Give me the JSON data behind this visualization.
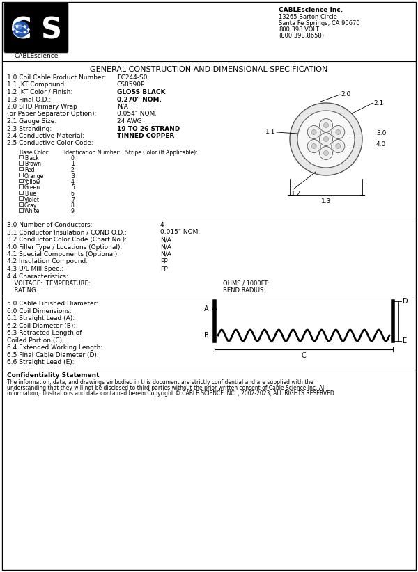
{
  "title": "GENERAL CONSTRUCTION AND DIMENSIONAL SPECIFICATION",
  "company_name": "CABLEscience Inc.",
  "company_address_lines": [
    "13265 Barton Circle",
    "Santa Fe Springs, CA 90670",
    "800.398.VOLT",
    "(800.398.8658)"
  ],
  "specs": [
    [
      "1.0 Coil Cable Product Number:",
      "EC244-S0"
    ],
    [
      "1.1 JKT Compound:",
      "CS8590P"
    ],
    [
      "1.2 JKT Color / Finish:",
      "GLOSS BLACK"
    ],
    [
      "1.3 Final O.D.:",
      "0.270\" NOM."
    ],
    [
      "2.0 SHD Primary Wrap",
      "N/A"
    ],
    [
      "(or Paper Separator Option):",
      "0.054\" NOM."
    ],
    [
      "2.1 Gauge Size:",
      "24 AWG"
    ],
    [
      "2.3 Stranding:",
      "19 TO 26 STRAND"
    ],
    [
      "2.4 Conductive Material:",
      "TINNED COPPER"
    ],
    [
      "2.5 Conductive Color Code:",
      ""
    ]
  ],
  "color_table_headers": [
    "Base Color:",
    "Idenfication Number:",
    "Stripe Color (If Applicable):"
  ],
  "color_rows": [
    [
      "Black",
      "0"
    ],
    [
      "Brown",
      "1"
    ],
    [
      "Red",
      "2"
    ],
    [
      "Orange",
      "3"
    ],
    [
      "Yellow",
      "4"
    ],
    [
      "Green",
      "5"
    ],
    [
      "Blue",
      "6"
    ],
    [
      "Violet",
      "7"
    ],
    [
      "Gray",
      "8"
    ],
    [
      "White",
      "9"
    ]
  ],
  "specs2": [
    [
      "3.0 Number of Conductors:",
      "4"
    ],
    [
      "3.1 Conductor Insulation / COND O.D.: ",
      "0.015\" NOM."
    ],
    [
      "3.2 Conductor Color Code (Chart No.):",
      "N/A"
    ],
    [
      "4.0 Filler Type / Locations (Optional):",
      "N/A"
    ],
    [
      "4.1 Special Components (Optional):",
      "N/A"
    ],
    [
      "4.2 Insulation Compound:",
      "PP"
    ],
    [
      "4.3 U/L Mill Spec.:",
      "PP"
    ],
    [
      "4.4 Characteristics:",
      ""
    ]
  ],
  "char_voltage": "    VOLTAGE:  TEMPERATURE:",
  "char_ohms": "OHMS / 1000FT:",
  "char_rating": "    RATING:",
  "char_bend": "BEND RADIUS:",
  "coil_dims": [
    "5.0 Cable Finished Diameter:",
    "6.0 Coil Dimensions:",
    "6.1 Straight Lead (A):",
    "6.2 Coil Diameter (B):",
    "6.3 Retracted Length of",
    "Coiled Portion (C):",
    "6.4 Extended Working Length:",
    "6.5 Final Cable Diameter (D):",
    "6.6 Straight Lead (E):"
  ],
  "confidentiality_title": "Confidentiality Statement",
  "confidentiality_body": [
    "The information, data, and drawings embodied in this document are strictly confidential and are supplied with the",
    "understanding that they will not be disclosed to third parties without the prior written consent of Cable Science Inc. All",
    "information, illustrations and data contained herein Copyright © CABLE SCIENCE INC. , 2002-2023, ALL RIGHTS RESERVED"
  ],
  "bg_color": "#ffffff"
}
